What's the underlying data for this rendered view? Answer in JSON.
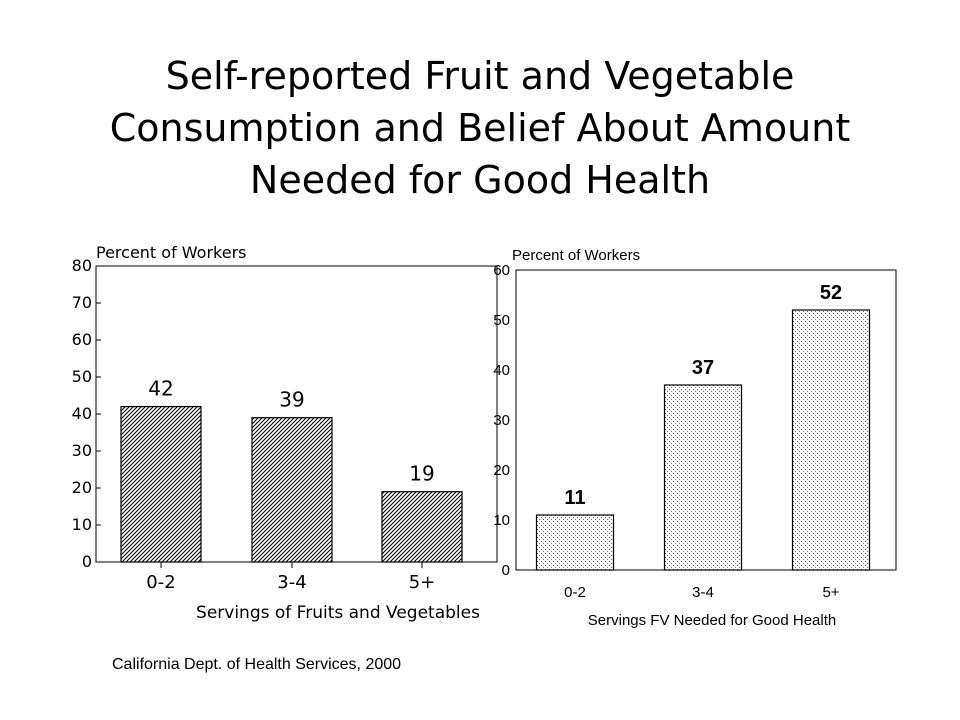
{
  "title_lines": [
    "Self-reported Fruit and Vegetable",
    "Consumption and Belief About Amount",
    "Needed for Good Health"
  ],
  "source": "California Dept. of Health Services, 2000",
  "chart_data": [
    {
      "type": "bar",
      "ylabel": "Percent of Workers",
      "xlabel": "Servings of Fruits and Vegetables",
      "categories": [
        "0-2",
        "3-4",
        "5+"
      ],
      "values": [
        42,
        39,
        19
      ],
      "data_labels": [
        "42",
        "39",
        "19"
      ],
      "ylim": [
        0,
        80
      ],
      "yticks": [
        0,
        10,
        20,
        30,
        40,
        50,
        60,
        70,
        80
      ],
      "bar_pattern": "diagonal-hatch",
      "grid": false
    },
    {
      "type": "bar",
      "ylabel": "Percent of Workers",
      "xlabel": "Servings FV Needed for Good Health",
      "categories": [
        "0-2",
        "3-4",
        "5+"
      ],
      "values": [
        11,
        37,
        52
      ],
      "data_labels": [
        "11",
        "37",
        "52"
      ],
      "ylim": [
        0,
        60
      ],
      "yticks": [
        0,
        10,
        20,
        30,
        40,
        50,
        60
      ],
      "bar_pattern": "dots",
      "grid": false
    }
  ]
}
